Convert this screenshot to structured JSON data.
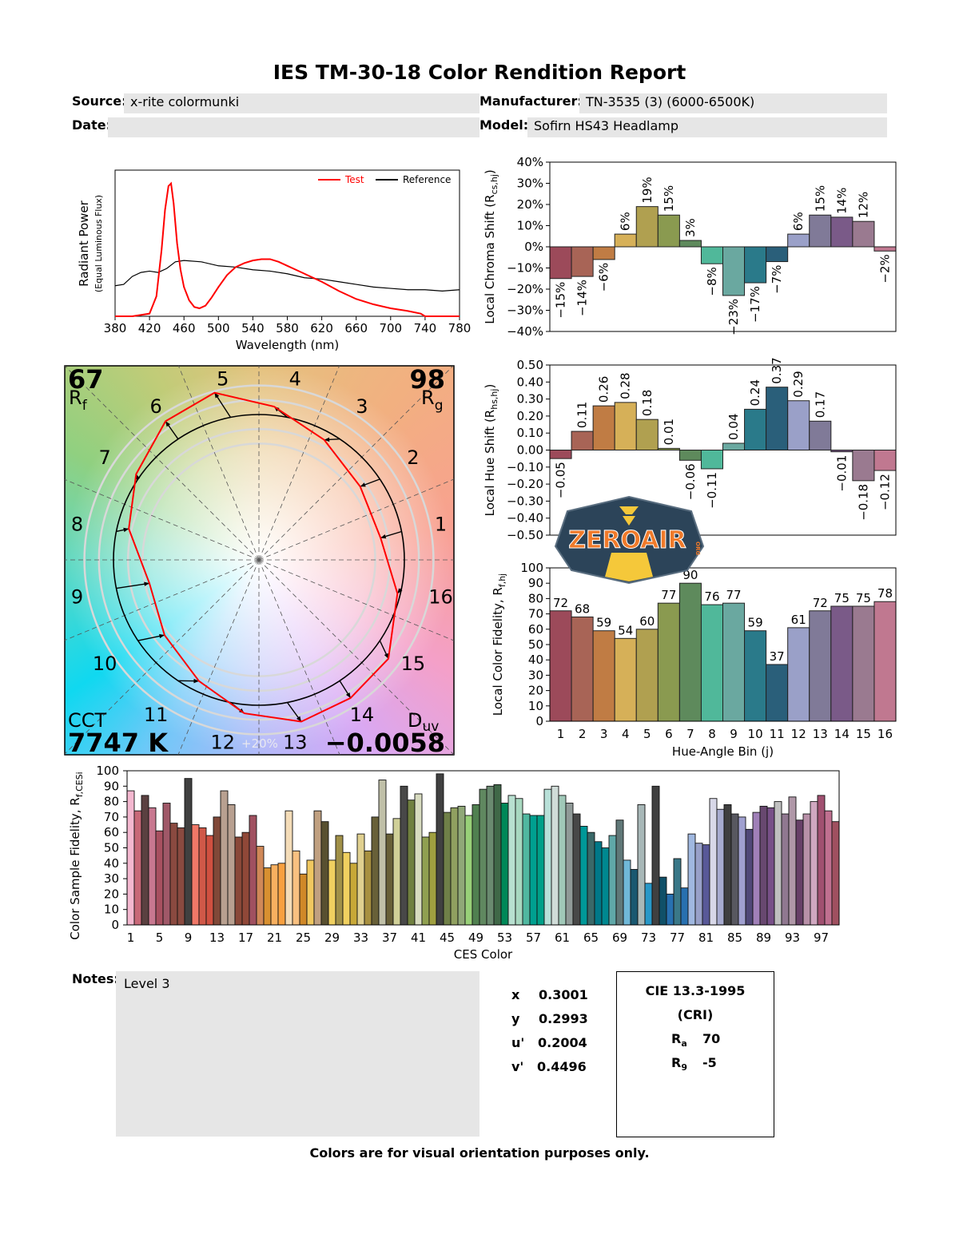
{
  "title": "IES TM-30-18 Color Rendition Report",
  "header": {
    "source_label": "Source:",
    "source_value": "x-rite colormunki",
    "date_label": "Date:",
    "date_value": "",
    "manufacturer_label": "Manufacturer:",
    "manufacturer_value": "TN-3535 (3) (6000-6500K)",
    "model_label": "Model:",
    "model_value": "Sofirn HS43 Headlamp"
  },
  "vector_graphic": {
    "rf_value": "67",
    "rf_label": "R",
    "rf_sub": "f",
    "rg_value": "98",
    "rg_label": "R",
    "rg_sub": "g",
    "cct_label": "CCT",
    "cct_value": "7747 K",
    "duv_label": "D",
    "duv_sub": "uv",
    "duv_value": "-0.0058",
    "ring_label": "+20%",
    "bin_labels": [
      "1",
      "2",
      "3",
      "4",
      "5",
      "6",
      "7",
      "8",
      "9",
      "10",
      "11",
      "12",
      "13",
      "14",
      "15",
      "16"
    ],
    "test_color": "#ff0000",
    "reference_color": "#000000"
  },
  "logo": {
    "text": "ZEROAIR",
    "sub": "ORG",
    "colors": {
      "bg": "#2c4459",
      "text": "#f07a2a",
      "accent": "#f5c83a"
    }
  },
  "chart_data": [
    {
      "id": "spectrum",
      "type": "line",
      "xlabel": "Wavelength (nm)",
      "ylabel": "Radiant Power",
      "ylabel2": "(Equal Luminous Flux)",
      "xlim": [
        380,
        780
      ],
      "xticks": [
        380,
        420,
        460,
        500,
        540,
        580,
        620,
        660,
        700,
        740,
        780
      ],
      "ylim": [
        0,
        1.1
      ],
      "legend": "top-right",
      "grid": false,
      "series": [
        {
          "name": "Test",
          "color": "#ff0000",
          "x": [
            380,
            400,
            420,
            428,
            434,
            438,
            442,
            445,
            448,
            452,
            456,
            460,
            466,
            472,
            478,
            485,
            492,
            500,
            510,
            520,
            530,
            540,
            550,
            560,
            570,
            580,
            590,
            600,
            620,
            640,
            660,
            680,
            700,
            720,
            735,
            740,
            780
          ],
          "y": [
            0,
            0,
            0.02,
            0.15,
            0.5,
            0.8,
            0.98,
            1.0,
            0.85,
            0.55,
            0.35,
            0.22,
            0.12,
            0.07,
            0.06,
            0.08,
            0.14,
            0.22,
            0.31,
            0.37,
            0.4,
            0.42,
            0.43,
            0.43,
            0.41,
            0.38,
            0.35,
            0.32,
            0.26,
            0.19,
            0.13,
            0.09,
            0.06,
            0.04,
            0.02,
            0,
            0
          ]
        },
        {
          "name": "Reference",
          "color": "#000000",
          "x": [
            380,
            390,
            400,
            410,
            420,
            430,
            440,
            450,
            460,
            480,
            500,
            520,
            540,
            560,
            580,
            600,
            620,
            640,
            660,
            680,
            700,
            720,
            740,
            760,
            780
          ],
          "y": [
            0.23,
            0.24,
            0.3,
            0.33,
            0.34,
            0.33,
            0.36,
            0.41,
            0.42,
            0.41,
            0.38,
            0.37,
            0.35,
            0.34,
            0.32,
            0.29,
            0.28,
            0.26,
            0.24,
            0.22,
            0.21,
            0.2,
            0.2,
            0.19,
            0.2
          ]
        }
      ]
    },
    {
      "id": "chroma_shift",
      "type": "bar",
      "ylabel": "Local Chroma Shift (R",
      "ylabel_sub": "cs,hj",
      "ylabel_end": ")",
      "ylim": [
        -40,
        40
      ],
      "yticks": [
        "40%",
        "30%",
        "20%",
        "10%",
        "0%",
        "-10%",
        "-20%",
        "-30%",
        "-40%"
      ],
      "categories": [
        "1",
        "2",
        "3",
        "4",
        "5",
        "6",
        "7",
        "8",
        "9",
        "10",
        "11",
        "12",
        "13",
        "14",
        "15",
        "16"
      ],
      "values": [
        -15,
        -14,
        -6,
        6,
        19,
        15,
        3,
        -8,
        -23,
        -17,
        -7,
        6,
        15,
        14,
        12,
        -2
      ],
      "labels": [
        "-15%",
        "-14%",
        "-6%",
        "6%",
        "19%",
        "15%",
        "3%",
        "-8%",
        "-23%",
        "-17%",
        "-7%",
        "6%",
        "15%",
        "14%",
        "12%",
        "-2%"
      ]
    },
    {
      "id": "hue_shift",
      "type": "bar",
      "ylabel": "Local Hue Shift (R",
      "ylabel_sub": "hs,hj",
      "ylabel_end": ")",
      "ylim": [
        -0.5,
        0.5
      ],
      "yticks": [
        "0.50",
        "0.40",
        "0.30",
        "0.20",
        "0.10",
        "0.00",
        "-0.10",
        "-0.20",
        "-0.30",
        "-0.40",
        "-0.50"
      ],
      "categories": [
        "1",
        "2",
        "3",
        "4",
        "5",
        "6",
        "7",
        "8",
        "9",
        "10",
        "11",
        "12",
        "13",
        "14",
        "15",
        "16"
      ],
      "values": [
        -0.05,
        0.11,
        0.26,
        0.28,
        0.18,
        0.01,
        -0.06,
        -0.11,
        0.04,
        0.24,
        0.37,
        0.29,
        0.17,
        -0.01,
        -0.18,
        -0.12
      ],
      "labels": [
        "-0.05",
        "0.11",
        "0.26",
        "0.28",
        "0.18",
        "0.01",
        "-0.06",
        "-0.11",
        "0.04",
        "0.24",
        "0.37",
        "0.29",
        "0.17",
        "-0.01",
        "-0.18",
        "-0.12"
      ]
    },
    {
      "id": "local_fidelity",
      "type": "bar",
      "ylabel": "Local Color Fidelity, R",
      "ylabel_sub": "f,hj",
      "xlabel": "Hue-Angle Bin (j)",
      "ylim": [
        0,
        100
      ],
      "yticks": [
        "100",
        "90",
        "80",
        "70",
        "60",
        "50",
        "40",
        "30",
        "20",
        "10",
        "0"
      ],
      "categories": [
        "1",
        "2",
        "3",
        "4",
        "5",
        "6",
        "7",
        "8",
        "9",
        "10",
        "11",
        "12",
        "13",
        "14",
        "15",
        "16"
      ],
      "values": [
        72,
        68,
        59,
        54,
        60,
        77,
        90,
        76,
        77,
        59,
        37,
        61,
        72,
        75,
        75,
        78
      ]
    },
    {
      "id": "ces_fidelity",
      "type": "bar",
      "ylabel": "Color Sample Fidelity, R",
      "ylabel_sub": "f,CESi",
      "xlabel": "CES Color",
      "ylim": [
        0,
        100
      ],
      "yticks": [
        "100",
        "90",
        "80",
        "70",
        "60",
        "50",
        "40",
        "30",
        "20",
        "10",
        "0"
      ],
      "xticks": [
        "1",
        "5",
        "9",
        "13",
        "17",
        "21",
        "25",
        "29",
        "33",
        "37",
        "41",
        "45",
        "49",
        "53",
        "57",
        "61",
        "65",
        "69",
        "73",
        "77",
        "81",
        "85",
        "89",
        "93",
        "97"
      ],
      "values": [
        87,
        74,
        84,
        76,
        61,
        79,
        66,
        63,
        95,
        65,
        63,
        58,
        70,
        87,
        78,
        57,
        60,
        71,
        51,
        37,
        39,
        40,
        74,
        48,
        33,
        42,
        74,
        67,
        42,
        58,
        47,
        40,
        59,
        48,
        70,
        94,
        59,
        69,
        90,
        81,
        85,
        57,
        60,
        98,
        73,
        76,
        77,
        71,
        78,
        88,
        90,
        91,
        79,
        84,
        82,
        72,
        71,
        71,
        88,
        90,
        84,
        79,
        72,
        64,
        60,
        54,
        50,
        58,
        68,
        42,
        36,
        78,
        27,
        90,
        31,
        20,
        43,
        24,
        59,
        53,
        52,
        82,
        75,
        78,
        72,
        70,
        62,
        73,
        77,
        76,
        80,
        72,
        83,
        68,
        72,
        80,
        84,
        74,
        67
      ],
      "colors": [
        "#f4b8d0",
        "#c86878",
        "#5a4040",
        "#c87890",
        "#a85060",
        "#a05868",
        "#8a4a40",
        "#8a4a40",
        "#404040",
        "#f07868",
        "#d05848",
        "#d05040",
        "#804838",
        "#b8a090",
        "#b8a090",
        "#8a4838",
        "#904838",
        "#a05060",
        "#d08858",
        "#d89030",
        "#f8b060",
        "#f8a040",
        "#f4dcb8",
        "#f8c080",
        "#d08828",
        "#f0c860",
        "#c0a080",
        "#585030",
        "#f0d060",
        "#a09048",
        "#f0d060",
        "#c8a838",
        "#e0d090",
        "#a89040",
        "#686038",
        "#c0c0a8",
        "#686038",
        "#d0d098",
        "#484848",
        "#708040",
        "#d8dcc0",
        "#90a050",
        "#a0a040",
        "#404040",
        "#708048",
        "#90a060",
        "#90a878",
        "#98d078",
        "#508050",
        "#608860",
        "#6a8a70",
        "#406848",
        "#008858",
        "#b8e0d0",
        "#a8d8c0",
        "#50b8a0",
        "#00a090",
        "#00a088",
        "#b8e0d8",
        "#d0dcd8",
        "#a0c8b8",
        "#909a98",
        "#484848",
        "#009898",
        "#3a6868",
        "#007888",
        "#008890",
        "#60a8a8",
        "#607878",
        "#70b8d8",
        "#1a5870",
        "#a8b8b8",
        "#2898c8",
        "#404040",
        "#105068",
        "#2870b0",
        "#3a7888",
        "#2870b0",
        "#a0b8e0",
        "#98a0c8",
        "#585898",
        "#d8d8e8",
        "#a8acd0",
        "#404040",
        "#585860",
        "#a0a0d0",
        "#504878",
        "#a080b8",
        "#684870",
        "#785088",
        "#c0c0c0",
        "#907890",
        "#b098a8",
        "#684068",
        "#b890a8",
        "#d0a8c0",
        "#a05070",
        "#c07090",
        "#a05060"
      ]
    }
  ],
  "bin_colors": [
    "#9c4a5a",
    "#a86456",
    "#c07c44",
    "#d6b058",
    "#b0a050",
    "#8a9a50",
    "#5e8a5c",
    "#50b89a",
    "#6aa8a0",
    "#2a7a8a",
    "#2a5f7a",
    "#9aa0c8",
    "#807a98",
    "#7a5a88",
    "#9a7a90",
    "#c07890"
  ],
  "notes": {
    "label": "Notes:",
    "value": "Level 3"
  },
  "chromaticity": {
    "x_label": "x",
    "x_value": "0.3001",
    "y_label": "y",
    "y_value": "0.2993",
    "u_label": "u'",
    "u_value": "0.2004",
    "v_label": "v'",
    "v_value": "0.4496"
  },
  "cri": {
    "title": "CIE 13.3-1995",
    "subtitle": "(CRI)",
    "ra_label": "R",
    "ra_sub": "a",
    "ra_value": "70",
    "r9_label": "R",
    "r9_sub": "9",
    "r9_value": "-5"
  },
  "footer": "Colors are for visual orientation purposes only."
}
